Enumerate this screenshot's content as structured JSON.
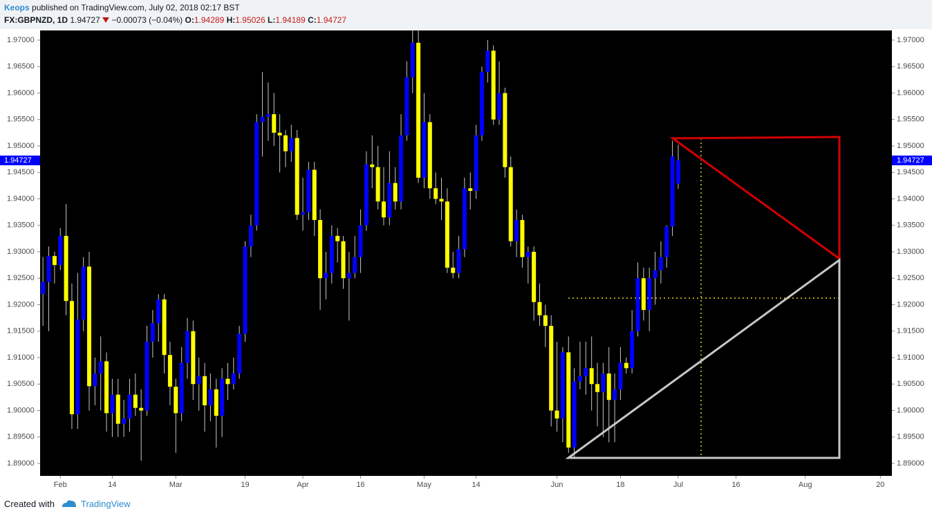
{
  "chart_data": {
    "type": "candlestick",
    "author": "Keops",
    "byline": "published on TradingView.com, July 02, 2018 02:17 BST",
    "symbol": "FX:GBPNZD, 1D",
    "change": "−0.00073 (−0.04%)",
    "ohlc_labels": [
      "O:",
      "H:",
      "L:",
      "C:"
    ],
    "up_color": "#0000ff",
    "down_color": "#ffff00",
    "wick_color": "#c8c8c8",
    "last_color": "#0000ff",
    "open": [
      1.922,
      1.9243,
      1.9292,
      1.9275,
      1.933,
      1.9207,
      1.8993,
      1.9172,
      1.9272,
      1.9046,
      1.907,
      1.9093,
      1.8995,
      1.903,
      1.8975,
      1.8985,
      1.903,
      1.9005,
      1.9,
      1.913,
      1.9165,
      1.921,
      1.9105,
      1.9045,
      1.8995,
      1.909,
      1.915,
      1.905,
      1.9065,
      1.901,
      1.904,
      1.899,
      1.906,
      1.905,
      1.907,
      1.9145,
      1.931,
      1.935,
      1.9545,
      1.9555,
      1.956,
      1.9525,
      1.952,
      1.949,
      1.9515,
      1.937,
      1.9375,
      1.9455,
      1.936,
      1.925,
      1.926,
      1.933,
      1.932,
      1.925,
      1.926,
      1.929,
      1.935,
      1.9465,
      1.946,
      1.9395,
      1.9365,
      1.943,
      1.9395,
      1.952,
      1.963,
      1.9695,
      1.944,
      1.9545,
      1.942,
      1.94,
      1.9395,
      1.927,
      1.926,
      1.9305,
      1.942,
      1.9415,
      1.952,
      1.964,
      1.968,
      1.955,
      1.96,
      1.946,
      1.932,
      1.936,
      1.929,
      1.93,
      1.9205,
      1.918,
      1.916,
      1.9,
      1.8985,
      1.911,
      1.893,
      1.9055,
      1.9065,
      1.908,
      1.905,
      1.9035,
      1.907,
      1.902,
      1.904,
      1.909,
      1.908,
      1.915,
      1.925,
      1.919,
      1.925,
      1.9265,
      1.929,
      1.9348,
      1.94289
    ],
    "high": [
      1.929,
      1.931,
      1.93,
      1.9345,
      1.939,
      1.924,
      1.926,
      1.929,
      1.93,
      1.91,
      1.914,
      1.911,
      1.906,
      1.906,
      1.902,
      1.906,
      1.907,
      1.904,
      1.916,
      1.919,
      1.922,
      1.922,
      1.913,
      1.906,
      1.912,
      1.9175,
      1.917,
      1.91,
      1.909,
      1.907,
      1.906,
      1.908,
      1.909,
      1.91,
      1.916,
      1.932,
      1.937,
      1.956,
      1.964,
      1.962,
      1.96,
      1.956,
      1.953,
      1.954,
      1.953,
      1.944,
      1.947,
      1.947,
      1.938,
      1.93,
      1.935,
      1.9345,
      1.933,
      1.93,
      1.933,
      1.938,
      1.949,
      1.952,
      1.95,
      1.946,
      1.949,
      1.946,
      1.956,
      1.966,
      1.972,
      1.972,
      1.96,
      1.956,
      1.945,
      1.944,
      1.942,
      1.93,
      1.933,
      1.944,
      1.945,
      1.954,
      1.965,
      1.97,
      1.969,
      1.966,
      1.961,
      1.948,
      1.938,
      1.937,
      1.931,
      1.931,
      1.924,
      1.92,
      1.918,
      1.913,
      1.912,
      1.914,
      1.908,
      1.913,
      1.913,
      1.914,
      1.909,
      1.909,
      1.912,
      1.907,
      1.912,
      1.91,
      1.919,
      1.928,
      1.927,
      1.927,
      1.93,
      1.932,
      1.935,
      1.951,
      1.95026
    ],
    "low": [
      1.916,
      1.915,
      1.924,
      1.9265,
      1.918,
      1.8965,
      1.8965,
      1.915,
      1.9,
      1.901,
      1.9,
      1.896,
      1.895,
      1.895,
      1.895,
      1.896,
      1.899,
      1.8905,
      1.899,
      1.91,
      1.913,
      1.907,
      1.901,
      1.892,
      1.898,
      1.906,
      1.902,
      1.9,
      1.896,
      1.898,
      1.893,
      1.895,
      1.902,
      1.904,
      1.906,
      1.913,
      1.929,
      1.934,
      1.948,
      1.951,
      1.95,
      1.945,
      1.946,
      1.947,
      1.936,
      1.934,
      1.936,
      1.933,
      1.919,
      1.921,
      1.924,
      1.928,
      1.923,
      1.917,
      1.925,
      1.926,
      1.934,
      1.942,
      1.938,
      1.935,
      1.935,
      1.938,
      1.938,
      1.951,
      1.96,
      1.943,
      1.942,
      1.94,
      1.939,
      1.936,
      1.926,
      1.925,
      1.925,
      1.929,
      1.938,
      1.94,
      1.951,
      1.962,
      1.954,
      1.954,
      1.944,
      1.931,
      1.929,
      1.927,
      1.924,
      1.917,
      1.916,
      1.912,
      1.897,
      1.896,
      1.894,
      1.892,
      1.891,
      1.904,
      1.903,
      1.9,
      1.897,
      1.895,
      1.894,
      1.894,
      1.902,
      1.907,
      1.907,
      1.914,
      1.917,
      1.915,
      1.92,
      1.924,
      1.927,
      1.933,
      1.94189
    ],
    "close": [
      1.9243,
      1.9292,
      1.9275,
      1.933,
      1.9207,
      1.8993,
      1.9172,
      1.9272,
      1.9046,
      1.907,
      1.9093,
      1.8995,
      1.903,
      1.8975,
      1.8985,
      1.903,
      1.9005,
      1.9,
      1.913,
      1.9165,
      1.921,
      1.9105,
      1.9045,
      1.8995,
      1.909,
      1.915,
      1.905,
      1.9065,
      1.901,
      1.904,
      1.899,
      1.906,
      1.905,
      1.907,
      1.9145,
      1.931,
      1.935,
      1.9545,
      1.9555,
      1.956,
      1.9525,
      1.952,
      1.949,
      1.9515,
      1.937,
      1.9375,
      1.9455,
      1.936,
      1.925,
      1.926,
      1.933,
      1.932,
      1.925,
      1.926,
      1.929,
      1.935,
      1.9465,
      1.946,
      1.9395,
      1.9365,
      1.943,
      1.9395,
      1.952,
      1.963,
      1.9695,
      1.944,
      1.9545,
      1.942,
      1.94,
      1.9395,
      1.927,
      1.926,
      1.9305,
      1.942,
      1.9415,
      1.952,
      1.964,
      1.968,
      1.955,
      1.96,
      1.946,
      1.932,
      1.936,
      1.929,
      1.93,
      1.9205,
      1.918,
      1.916,
      1.9,
      1.8985,
      1.911,
      1.893,
      1.9055,
      1.9065,
      1.908,
      1.905,
      1.9035,
      1.907,
      1.902,
      1.904,
      1.909,
      1.908,
      1.915,
      1.925,
      1.919,
      1.925,
      1.9265,
      1.929,
      1.9348,
      1.948,
      1.94727
    ],
    "xlim": [
      -0.5,
      147
    ],
    "ylim": [
      1.88765,
      1.97183
    ],
    "xticks": [
      {
        "value": 3,
        "label": "Feb"
      },
      {
        "value": 12,
        "label": "14"
      },
      {
        "value": 23,
        "label": "Mar"
      },
      {
        "value": 35,
        "label": "19"
      },
      {
        "value": 45,
        "label": "Apr"
      },
      {
        "value": 55,
        "label": "16"
      },
      {
        "value": 66,
        "label": "May"
      },
      {
        "value": 75,
        "label": "14"
      },
      {
        "value": 89,
        "label": "Jun"
      },
      {
        "value": 100,
        "label": "18"
      },
      {
        "value": 110,
        "label": "Jul"
      },
      {
        "value": 120,
        "label": "16"
      },
      {
        "value": 132,
        "label": "Aug"
      },
      {
        "value": 145,
        "label": "20"
      }
    ],
    "yticks": [
      {
        "value": 1.89,
        "label": "1.89000"
      },
      {
        "value": 1.895,
        "label": "1.89500"
      },
      {
        "value": 1.9,
        "label": "1.90000"
      },
      {
        "value": 1.905,
        "label": "1.90500"
      },
      {
        "value": 1.91,
        "label": "1.91000"
      },
      {
        "value": 1.915,
        "label": "1.91500"
      },
      {
        "value": 1.92,
        "label": "1.92000"
      },
      {
        "value": 1.925,
        "label": "1.92500"
      },
      {
        "value": 1.93,
        "label": "1.93000"
      },
      {
        "value": 1.935,
        "label": "1.93500"
      },
      {
        "value": 1.94,
        "label": "1.94000"
      },
      {
        "value": 1.945,
        "label": "1.94500"
      },
      {
        "value": 1.95,
        "label": "1.95000"
      },
      {
        "value": 1.955,
        "label": "1.95500"
      },
      {
        "value": 1.96,
        "label": "1.96000"
      },
      {
        "value": 1.965,
        "label": "1.96500"
      },
      {
        "value": 1.97,
        "label": "1.97000"
      }
    ],
    "footer": "Created with",
    "brand": "TradingView"
  }
}
